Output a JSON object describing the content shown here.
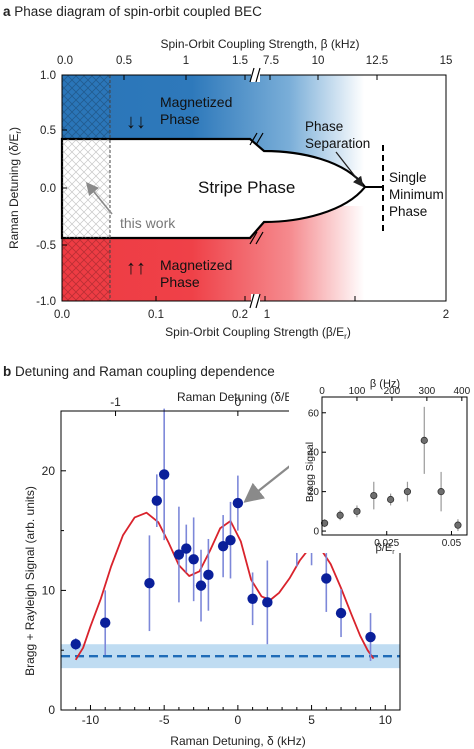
{
  "panel_a": {
    "letter": "a",
    "title": "Phase diagram of spin-orbit coupled BEC",
    "top_axis_label": "Spin-Orbit Coupling Strength, β (kHz)",
    "bottom_axis_label": "Spin-Orbit Coupling Strength (β/E",
    "bottom_axis_sub": "r",
    "bottom_axis_close": ")",
    "y_axis_label": "Raman Detuning (δ/E",
    "y_axis_sub": "r",
    "y_axis_close": ")",
    "labels": {
      "mag_top_1": "Magnetized",
      "mag_top_2": "Phase",
      "mag_bot_1": "Magnetized",
      "mag_bot_2": "Phase",
      "stripe": "Stripe Phase",
      "sep_1": "Phase",
      "sep_2": "Separation",
      "single_1": "Single",
      "single_2": "Minimum",
      "single_3": "Phase",
      "this_work": "this work",
      "spin_top": "↓↓",
      "spin_bot": "↑↑"
    },
    "colors": {
      "blue": "#2a75b8",
      "red": "#ee3b43"
    }
  },
  "panel_b": {
    "letter": "b",
    "title": "Detuning and Raman coupling dependence",
    "colors": {
      "point": "#0a1f9a",
      "errorbar": "#7d88d9",
      "fit": "#d9232c",
      "baseline": "#1f6cb8",
      "band": "#bfdcf2"
    },
    "chart_data": [
      {
        "type": "phase_diagram",
        "title": "Phase diagram of spin-orbit coupled BEC",
        "xlabel": "Spin-Orbit Coupling Strength (β/Er)",
        "x2label": "Spin-Orbit Coupling Strength, β (kHz)",
        "ylabel": "Raman Detuning (δ/Er)",
        "xticks_lower": [
          "0.0",
          "0.1",
          "0.2",
          "1",
          "2"
        ],
        "xticks_upper": [
          "0.0",
          "0.5",
          "1",
          "1.5",
          "7.5",
          "10",
          "12.5",
          "15"
        ],
        "yticks": [
          "1.0",
          "0.5",
          "0.0",
          "-0.5",
          "-1.0"
        ],
        "ylim": [
          -1.0,
          1.0
        ],
        "regions": [
          "Magnetized Phase",
          "Stripe Phase",
          "Phase Separation",
          "Single Minimum Phase",
          "Magnetized Phase"
        ]
      },
      {
        "type": "scatter",
        "xlabel": "Raman Detuning, δ (kHz)",
        "ylabel": "Bragg + Rayleigh Signal (arb. units)",
        "x2label": "Raman Detuning (δ/Er)",
        "xlim": [
          -12,
          11
        ],
        "ylim": [
          0,
          25
        ],
        "xticks": [
          "-10",
          "-5",
          "0",
          "5",
          "10"
        ],
        "yticks": [
          "0",
          "10",
          "20"
        ],
        "x2ticks": [
          "-1",
          "0",
          "1"
        ],
        "x": [
          -11,
          -9,
          -6,
          -5.5,
          -5,
          -4,
          -3.5,
          -3,
          -2.5,
          -2,
          -1,
          -0.5,
          0,
          1,
          2,
          4,
          5,
          6,
          7,
          9
        ],
        "y": [
          5.5,
          7.3,
          10.6,
          17.5,
          19.7,
          13,
          13.5,
          12.6,
          10.4,
          11.3,
          13.7,
          14.2,
          17.3,
          9.3,
          9.0,
          14.5,
          15.3,
          11.0,
          8.1,
          6.1
        ],
        "yerr": [
          0.5,
          2.7,
          4.0,
          2.2,
          5.5,
          4.0,
          2.0,
          3.5,
          3.0,
          3.0,
          2.6,
          3.2,
          2.3,
          2.2,
          3.5,
          2.5,
          3.2,
          2.8,
          2.0,
          2.0
        ],
        "fit_y": [
          4.2,
          5.2,
          7.0,
          9.3,
          12.0,
          14.6,
          16.1,
          16.5,
          15.7,
          14.0,
          12.1,
          11.2,
          11.6,
          13.3,
          15.2,
          15.8,
          14.1,
          10.9,
          9.5,
          9.2,
          9.8,
          11.0,
          12.5,
          13.6,
          13.5,
          12.2,
          10.2,
          8.0,
          6.2,
          5.0,
          4.3
        ],
        "fit_x": [
          -11,
          -10.5,
          -10,
          -9.3,
          -8.6,
          -7.8,
          -7,
          -6.2,
          -5.4,
          -4.7,
          -4,
          -3.3,
          -2.6,
          -1.9,
          -1.2,
          -0.5,
          0.2,
          0.9,
          1.6,
          2.2,
          2.8,
          3.5,
          4.2,
          4.9,
          5.6,
          6.3,
          7.0,
          7.7,
          8.3,
          8.8,
          9.2
        ],
        "baseline": 4.5,
        "band": [
          3.5,
          5.5
        ]
      },
      {
        "type": "scatter",
        "xlabel": "β/Er",
        "ylabel": "Bragg Signal",
        "x2label": "β (Hz)",
        "xlim": [
          0,
          0.056
        ],
        "ylim": [
          -2,
          68
        ],
        "xticks": [
          "0.025",
          "0.05"
        ],
        "yticks": [
          "0",
          "20",
          "40",
          "60"
        ],
        "x2ticks": [
          "0",
          "100",
          "200",
          "300",
          "400"
        ],
        "x": [
          0.001,
          0.007,
          0.0135,
          0.02,
          0.0265,
          0.033,
          0.0395,
          0.046,
          0.0525
        ],
        "y": [
          4,
          8,
          10,
          18,
          16,
          20,
          46,
          20,
          3
        ],
        "yerr": [
          2,
          2.5,
          3,
          7,
          3,
          5,
          17,
          10,
          3
        ]
      }
    ]
  }
}
